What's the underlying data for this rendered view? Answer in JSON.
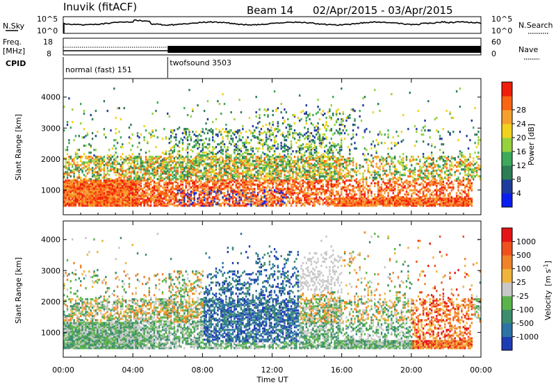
{
  "header": {
    "station": "Inuvik (fitACF)",
    "beam": "Beam 14",
    "date_range": "02/Apr/2015 - 03/Apr/2015"
  },
  "strip_panels": {
    "noise": {
      "left_label": "N.Sky",
      "right_label": "N.Search",
      "left_ticks": [
        "10^5",
        "10^0"
      ],
      "right_ticks": [
        "10^5",
        "10^0"
      ]
    },
    "freq": {
      "left_label": "Freq.",
      "left_unit": "[MHz]",
      "left_ticks": [
        "18",
        "8"
      ],
      "right_label": "Nave",
      "right_ticks": [
        "60",
        "0"
      ]
    },
    "cpid": {
      "label": "CPID",
      "modes": [
        {
          "name": "normal (fast) 151",
          "start_hour": 0,
          "end_hour": 6
        },
        {
          "name": "twofsound 3503",
          "start_hour": 6,
          "end_hour": 24
        }
      ]
    }
  },
  "chart_data": [
    {
      "type": "heatmap",
      "name": "power",
      "ylabel": "Slant Range [km]",
      "ylim": [
        200,
        4600
      ],
      "yticks": [
        "1000",
        "2000",
        "3000",
        "4000"
      ],
      "xlim": [
        0,
        24
      ],
      "colorbar": {
        "label": "Power [dB]",
        "ticks": [
          "4",
          "8",
          "12",
          "16",
          "20",
          "24",
          "28"
        ],
        "colors": [
          "#0a1ef0",
          "#1e3c9b",
          "#2d7d55",
          "#3caa5a",
          "#96d23c",
          "#f0d21e",
          "#f5a02d",
          "#fa6414",
          "#f01e0a"
        ]
      }
    },
    {
      "type": "heatmap",
      "name": "velocity",
      "ylabel": "Slant Range [km]",
      "ylim": [
        200,
        4600
      ],
      "yticks": [
        "1000",
        "2000",
        "3000",
        "4000"
      ],
      "xlim": [
        0,
        24
      ],
      "xlabel": "Time UT",
      "xticks": [
        "00:00",
        "04:00",
        "08:00",
        "12:00",
        "16:00",
        "20:00",
        "00:00"
      ],
      "colorbar": {
        "label": "Velocity",
        "unit_base": "[m s",
        "unit_sup": "-1",
        "unit_end": "]",
        "ticks": [
          "1000",
          "500",
          "100",
          "25",
          "-25",
          "-100",
          "-500",
          "-1000"
        ],
        "colors": [
          "#1e3cb4",
          "#2d73a5",
          "#3c8c6e",
          "#5ab44b",
          "#c8c8c8",
          "#f0b43c",
          "#f08228",
          "#f0501e",
          "#e61414"
        ]
      }
    }
  ]
}
